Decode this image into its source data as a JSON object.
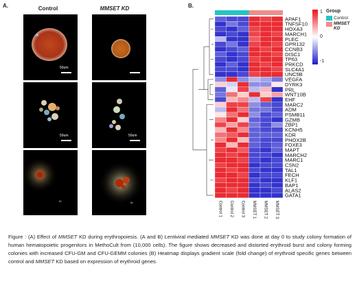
{
  "panel_a": {
    "letter": "A.",
    "col_control": "Control",
    "col_kd": "MMSET KD",
    "scale_label": "50um",
    "well_mark_1": "Bi",
    "well_mark_2": "Bi"
  },
  "panel_b": {
    "letter": "B.",
    "legend_title": "Group",
    "legend_items": [
      "Control",
      "MMSET KD"
    ],
    "legend_colors": {
      "control": "#24c4c8",
      "kd": "#f08c8c"
    },
    "colorbar_ticks": [
      "1",
      "0",
      "-1"
    ],
    "colorbar_colors": {
      "high": "#e8141c",
      "mid": "#ffffff",
      "low": "#1c1cc8"
    }
  },
  "chart_data": {
    "type": "heatmap",
    "title": "",
    "xlabel": "",
    "ylabel": "",
    "columns": [
      "Control 1",
      "Control 2",
      "Control 3",
      "MMSET 1",
      "MMSET 2",
      "MMSET 3"
    ],
    "rows": [
      "APAF1",
      "TNFSF10",
      "HOXA3",
      "MARCH1",
      "PLEC",
      "GPR132",
      "CCNB3",
      "DISC1",
      "TP63",
      "PRKCD",
      "SLC4A1",
      "UNC5B",
      "VEGFA",
      "DYRK3",
      "PRL",
      "WNT10B",
      "EHF",
      "MARC2",
      "ADM",
      "PSMB11",
      "GZMB",
      "ZBP1",
      "KCNH5",
      "KDR",
      "PHOX2B",
      "FOXE3",
      "MAPT",
      "MARCH2",
      "MARC1",
      "CSN2",
      "TAL1",
      "FECH",
      "KLF1",
      "BAP1",
      "ALAS2",
      "GATA1"
    ],
    "values": [
      [
        -0.7,
        -0.8,
        -0.8,
        0.9,
        0.8,
        0.9
      ],
      [
        -0.9,
        -0.6,
        -0.8,
        0.9,
        0.9,
        0.9
      ],
      [
        -0.8,
        -0.9,
        -0.7,
        0.8,
        0.9,
        0.9
      ],
      [
        -0.9,
        -0.8,
        -0.9,
        0.8,
        0.9,
        0.8
      ],
      [
        -0.3,
        -0.9,
        -0.9,
        0.7,
        0.9,
        0.9
      ],
      [
        -0.8,
        -0.6,
        -0.9,
        0.8,
        0.9,
        0.8
      ],
      [
        -0.9,
        -0.8,
        -0.7,
        0.9,
        0.8,
        0.9
      ],
      [
        -0.7,
        -0.9,
        -0.8,
        0.9,
        0.9,
        0.8
      ],
      [
        -0.8,
        -0.9,
        -0.8,
        0.8,
        0.9,
        0.9
      ],
      [
        -0.9,
        -0.7,
        -0.9,
        0.9,
        0.8,
        0.9
      ],
      [
        -0.8,
        -0.8,
        -0.9,
        0.9,
        0.9,
        0.8
      ],
      [
        -0.9,
        -0.9,
        -0.8,
        0.8,
        0.9,
        0.9
      ],
      [
        -0.5,
        0.9,
        -0.5,
        -0.3,
        -0.4,
        -0.6
      ],
      [
        0.2,
        -0.2,
        0.9,
        -0.5,
        -0.5,
        0.1
      ],
      [
        -0.7,
        -0.1,
        0.8,
        -0.3,
        0.3,
        -0.9
      ],
      [
        -0.6,
        0.6,
        0.2,
        0.9,
        0.2,
        0.4
      ],
      [
        -0.8,
        0.3,
        0.5,
        -0.3,
        0.8,
        -0.9
      ],
      [
        0.2,
        0.8,
        0.8,
        -0.5,
        -0.7,
        -0.8
      ],
      [
        -0.3,
        0.9,
        0.6,
        -0.6,
        -0.6,
        -0.8
      ],
      [
        0.1,
        0.6,
        0.9,
        -0.5,
        -0.8,
        -0.7
      ],
      [
        0.5,
        0.9,
        0.2,
        -0.7,
        -0.8,
        -0.9
      ],
      [
        0.8,
        0.4,
        0.8,
        -0.6,
        -0.8,
        -0.5
      ],
      [
        0.3,
        0.9,
        0.5,
        -0.7,
        -0.8,
        -0.8
      ],
      [
        0.6,
        0.7,
        0.9,
        -0.7,
        -0.7,
        -0.7
      ],
      [
        0.5,
        0.9,
        0.3,
        -0.7,
        -0.8,
        -0.8
      ],
      [
        0.9,
        0.3,
        0.9,
        -0.7,
        -0.8,
        -0.7
      ],
      [
        0.8,
        0.9,
        0.7,
        -0.8,
        -0.9,
        -0.7
      ],
      [
        0.9,
        0.8,
        0.9,
        -0.8,
        -0.8,
        -0.9
      ],
      [
        0.9,
        0.9,
        0.8,
        -0.8,
        -0.9,
        -0.8
      ],
      [
        0.8,
        0.9,
        0.9,
        -0.9,
        -0.8,
        -0.8
      ],
      [
        0.9,
        0.8,
        0.9,
        -0.8,
        -0.9,
        -0.9
      ],
      [
        0.9,
        0.9,
        0.8,
        -0.9,
        -0.8,
        -0.8
      ],
      [
        0.8,
        0.9,
        0.9,
        -0.8,
        -0.9,
        -0.9
      ],
      [
        0.9,
        0.9,
        0.9,
        -0.9,
        -0.8,
        -0.9
      ],
      [
        0.9,
        0.8,
        0.9,
        -0.9,
        -0.9,
        -0.8
      ],
      [
        0.9,
        0.9,
        0.9,
        -0.9,
        -0.9,
        -0.9
      ]
    ],
    "color_range": [
      -1,
      1
    ]
  },
  "caption": {
    "prefix": "Figure : (A) Effect of ",
    "kd1": "MMSET",
    "seg1": " KD during erythropoiesis. (A and B) Lentiviral mediated ",
    "kd2": "MMSET",
    "seg2": " KD was done at day 0 to study colony formation of human hematopoietic progenitors in MethoCult from (10,000 cells). The figure shows decreased and distorted erythroid burst and colony forming colonies with increased CFU-GM and CFU-GEMM colonies (B) Heatmap displays  gradient scale (fold change) of erythroid specific genes between control and ",
    "kd3": "MMSET",
    "seg3": " KD  based on expression of erythroid genes."
  }
}
